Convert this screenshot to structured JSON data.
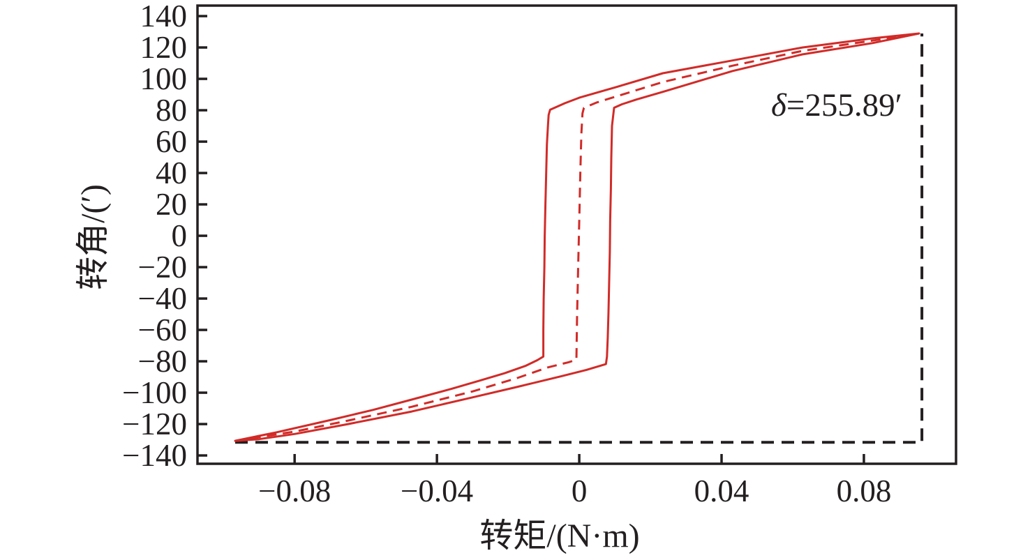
{
  "figure": {
    "background": "#ffffff"
  },
  "chart_data": {
    "type": "line",
    "title": "",
    "xlabel": "转矩/(N·m)",
    "ylabel": "转角/(′)",
    "annotation": {
      "symbol": "δ",
      "value": "=255.89′"
    },
    "xlim": [
      -0.1073,
      0.1059
    ],
    "ylim": [
      -145.3,
      146.7
    ],
    "grid": false,
    "legend": "none",
    "axis_color": "#231f20",
    "x_ticks": [
      {
        "v": -0.08,
        "label": "−0.08"
      },
      {
        "v": -0.04,
        "label": "−0.04"
      },
      {
        "v": 0,
        "label": "0"
      },
      {
        "v": 0.04,
        "label": "0.04"
      },
      {
        "v": 0.08,
        "label": "0.08"
      }
    ],
    "y_ticks": [
      {
        "v": 140,
        "label": "140"
      },
      {
        "v": 120,
        "label": "120"
      },
      {
        "v": 100,
        "label": "100"
      },
      {
        "v": 80,
        "label": "80"
      },
      {
        "v": 60,
        "label": "60"
      },
      {
        "v": 40,
        "label": "40"
      },
      {
        "v": 20,
        "label": "20"
      },
      {
        "v": 0,
        "label": "0"
      },
      {
        "v": -20,
        "label": "−20"
      },
      {
        "v": -40,
        "label": "−40"
      },
      {
        "v": -60,
        "label": "−60"
      },
      {
        "v": -80,
        "label": "−80"
      },
      {
        "v": -100,
        "label": "−100"
      },
      {
        "v": -120,
        "label": "−120"
      },
      {
        "v": -140,
        "label": "−140"
      }
    ],
    "series": [
      {
        "name": "backlash-guide-dashed",
        "style": "dashed",
        "color": "#231f20",
        "width": 4,
        "dash": "18 11",
        "closed": false,
        "points": [
          [
            -0.0967,
            -131.6
          ],
          [
            0.0963,
            -131.6
          ],
          [
            0.0963,
            128.9
          ]
        ]
      },
      {
        "name": "hysteresis-loop-solid",
        "style": "solid",
        "color": "#d12b28",
        "width": 3,
        "dash": "",
        "closed": true,
        "points": [
          [
            -0.0967,
            -130.7
          ],
          [
            -0.085,
            -125.2
          ],
          [
            -0.07,
            -117.5
          ],
          [
            -0.058,
            -111.0
          ],
          [
            -0.0471,
            -104.4
          ],
          [
            -0.036,
            -97.6
          ],
          [
            -0.028,
            -92.3
          ],
          [
            -0.021,
            -87.6
          ],
          [
            -0.015,
            -82.8
          ],
          [
            -0.0118,
            -79.3
          ],
          [
            -0.0101,
            -77.0
          ],
          [
            -0.0101,
            -60
          ],
          [
            -0.01,
            -40
          ],
          [
            -0.0098,
            -20
          ],
          [
            -0.0097,
            0
          ],
          [
            -0.0095,
            20
          ],
          [
            -0.0093,
            40
          ],
          [
            -0.0091,
            58
          ],
          [
            -0.0088,
            70
          ],
          [
            -0.0086,
            77
          ],
          [
            -0.0082,
            80.3
          ],
          [
            -0.004,
            84.5
          ],
          [
            0.0,
            88.0
          ],
          [
            0.01,
            94.5
          ],
          [
            0.0235,
            103.6
          ],
          [
            0.0431,
            111.7
          ],
          [
            0.0627,
            120.0
          ],
          [
            0.0824,
            125.8
          ],
          [
            0.0955,
            128.9
          ],
          [
            0.0824,
            122.8
          ],
          [
            0.0627,
            115.6
          ],
          [
            0.0431,
            105.0
          ],
          [
            0.0235,
            91.7
          ],
          [
            0.016,
            86.8
          ],
          [
            0.012,
            83.8
          ],
          [
            0.0098,
            81.6
          ],
          [
            0.0092,
            70
          ],
          [
            0.009,
            50
          ],
          [
            0.0089,
            30
          ],
          [
            0.0087,
            10
          ],
          [
            0.0086,
            -10
          ],
          [
            0.0084,
            -30
          ],
          [
            0.0082,
            -50
          ],
          [
            0.008,
            -65
          ],
          [
            0.0078,
            -77
          ],
          [
            0.0075,
            -81.8
          ],
          [
            0.002,
            -85.5
          ],
          [
            -0.005,
            -89.5
          ],
          [
            -0.0176,
            -96.4
          ],
          [
            -0.03,
            -103.0
          ],
          [
            -0.0471,
            -112.0
          ],
          [
            -0.065,
            -120.0
          ],
          [
            -0.08,
            -126.3
          ],
          [
            -0.09,
            -129.6
          ]
        ]
      },
      {
        "name": "hysteresis-center-dashed",
        "style": "dashed",
        "color": "#d12b28",
        "width": 3,
        "dash": "14 9",
        "closed": false,
        "points": [
          [
            -0.0967,
            -130.7
          ],
          [
            -0.08,
            -124.8
          ],
          [
            -0.065,
            -117.8
          ],
          [
            -0.0471,
            -109.0
          ],
          [
            -0.03,
            -99.2
          ],
          [
            -0.0176,
            -90.8
          ],
          [
            -0.009,
            -84.0
          ],
          [
            -0.003,
            -80.6
          ],
          [
            -0.0008,
            -79.0
          ],
          [
            -0.0006,
            -50
          ],
          [
            -0.0003,
            -20
          ],
          [
            0.0,
            10
          ],
          [
            0.0003,
            40
          ],
          [
            0.0006,
            65
          ],
          [
            0.0009,
            78
          ],
          [
            0.0013,
            81.5
          ],
          [
            0.005,
            85.0
          ],
          [
            0.0235,
            98.0
          ],
          [
            0.0431,
            108.4
          ],
          [
            0.0627,
            117.8
          ],
          [
            0.0824,
            124.4
          ],
          [
            0.0955,
            128.9
          ]
        ]
      }
    ]
  }
}
